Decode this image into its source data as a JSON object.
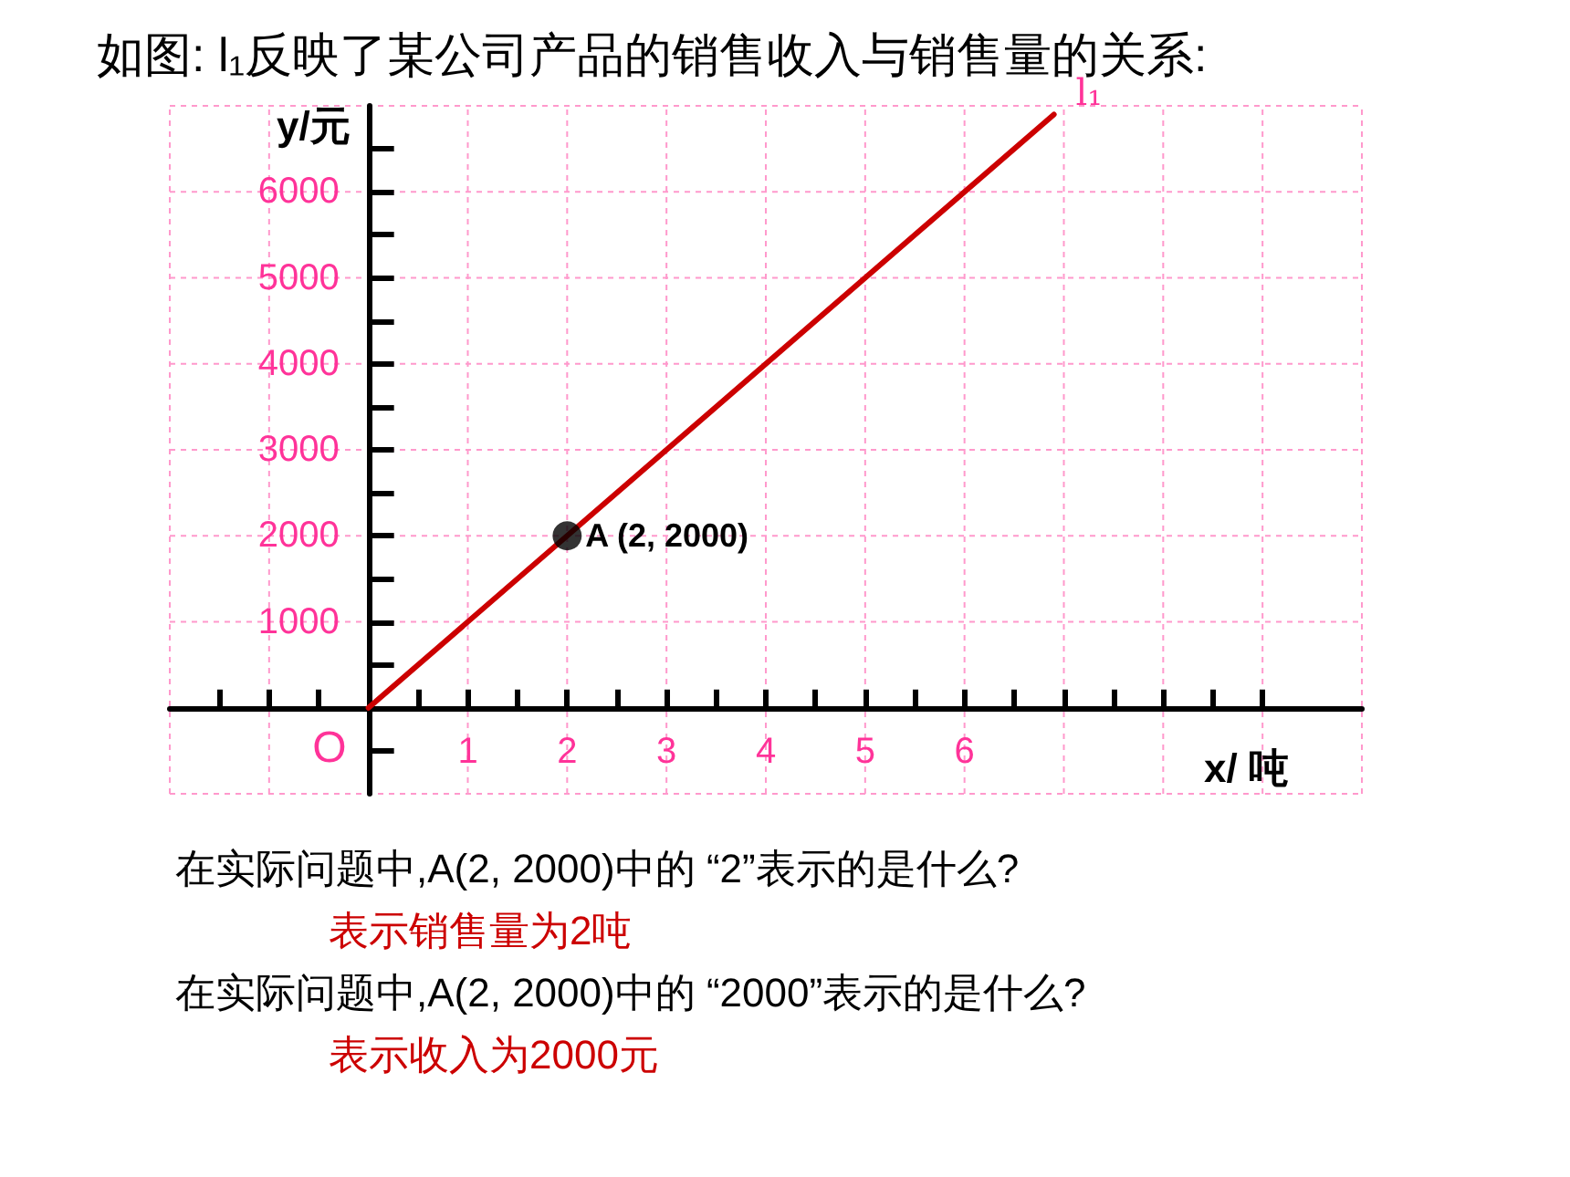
{
  "chart_data": {
    "type": "line",
    "title": "如图: l₁反映了某公司产品的销售收入与销售量的关系:",
    "xlabel": "x/ 吨",
    "ylabel": "y/元",
    "series": [
      {
        "name": "l₁",
        "color": "#cc0000",
        "x": [
          0,
          6.9
        ],
        "values": [
          0,
          6900
        ]
      },
      {
        "type": "scatter",
        "color": "#000000",
        "x": [
          2
        ],
        "values": [
          2000
        ],
        "marker": "circle"
      }
    ],
    "xlim": [
      -2,
      10
    ],
    "ylim": [
      -1000,
      7000
    ],
    "xticks": [
      {
        "value": -1.5,
        "label": null
      },
      {
        "value": -1,
        "label": null
      },
      {
        "value": -0.5,
        "label": null
      },
      {
        "value": 0.5,
        "label": null
      },
      1,
      {
        "value": 1.5,
        "label": null
      },
      2,
      {
        "value": 2.5,
        "label": null
      },
      3,
      {
        "value": 3.5,
        "label": null
      },
      4,
      {
        "value": 4.5,
        "label": null
      },
      5,
      {
        "value": 5.5,
        "label": null
      },
      6,
      {
        "value": 6.5,
        "label": null
      },
      {
        "value": 7,
        "label": null
      },
      {
        "value": 7.5,
        "label": null
      },
      {
        "value": 8,
        "label": null
      },
      {
        "value": 8.5,
        "label": null
      },
      {
        "value": 9,
        "label": null
      }
    ],
    "yticks": [
      {
        "value": -500,
        "label": null
      },
      {
        "value": 500,
        "label": null
      },
      1000,
      {
        "value": 1500,
        "label": null
      },
      2000,
      {
        "value": 2500,
        "label": null
      },
      3000,
      {
        "value": 3500,
        "label": null
      },
      4000,
      {
        "value": 4500,
        "label": null
      },
      5000,
      {
        "value": 5500,
        "label": null
      },
      6000,
      {
        "value": 6500,
        "label": null
      }
    ],
    "grid": true,
    "legend": false,
    "marker": "none",
    "line_style": "solid",
    "annotations": [
      {
        "text": "O",
        "x": 0,
        "y": 0
      },
      {
        "text": "A (2, 2000)",
        "x": 2,
        "y": 2000
      },
      "在实际问题中,A(2, 2000)中的 “2”表示的是什么?",
      "表示销售量为2吨",
      "在实际问题中,A(2, 2000)中的 “2000”表示的是什么?",
      "表示收入为2000元"
    ]
  }
}
